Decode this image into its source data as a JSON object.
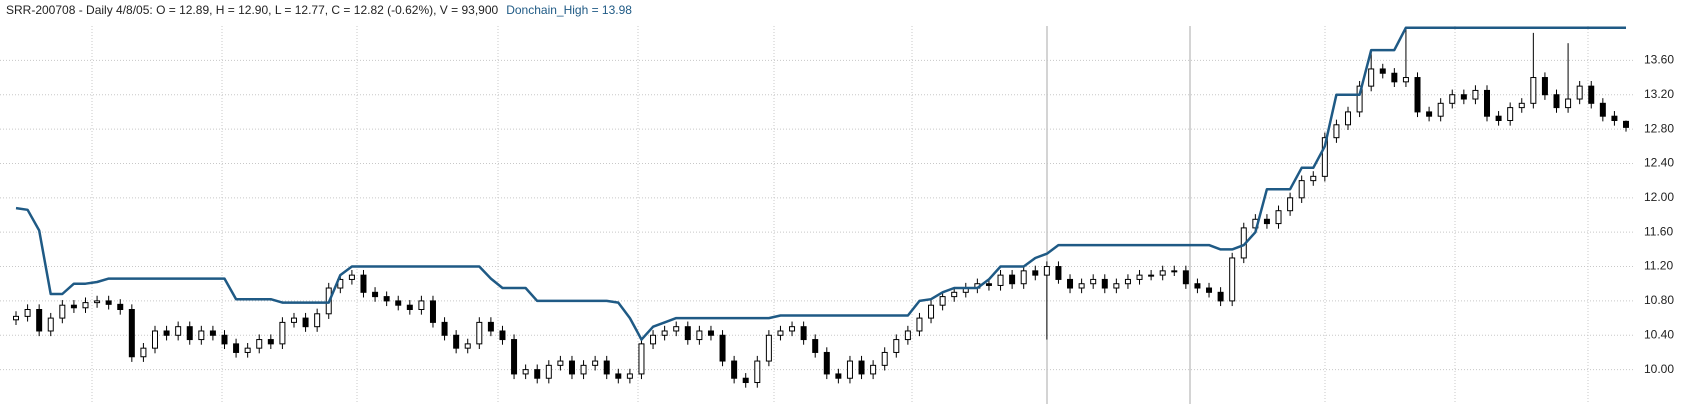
{
  "chart_data": {
    "type": "candlestick",
    "title": "SRR-200708 - Daily 4/8/05:  O = 12.89,  H = 12.90,  L = 12.77,  C = 12.82 (-0.62%), V = 93,900",
    "open": [
      10.58,
      10.62,
      10.7,
      10.45,
      10.6,
      10.75,
      10.72,
      10.78,
      10.8,
      10.76,
      10.7,
      10.15,
      10.25,
      10.45,
      10.4,
      10.5,
      10.35,
      10.45,
      10.4,
      10.3,
      10.2,
      10.25,
      10.35,
      10.3,
      10.55,
      10.6,
      10.5,
      10.65,
      10.95,
      11.05,
      11.1,
      10.9,
      10.85,
      10.8,
      10.75,
      10.7,
      10.8,
      10.55,
      10.4,
      10.25,
      10.3,
      10.55,
      10.45,
      10.35,
      9.95,
      10.0,
      9.9,
      10.05,
      10.1,
      9.95,
      10.05,
      10.1,
      9.95,
      9.9,
      9.95,
      10.3,
      10.4,
      10.45,
      10.5,
      10.35,
      10.45,
      10.4,
      10.1,
      9.9,
      9.85,
      10.1,
      10.4,
      10.45,
      10.5,
      10.35,
      10.2,
      9.95,
      9.9,
      10.1,
      9.95,
      10.05,
      10.2,
      10.35,
      10.45,
      10.6,
      10.75,
      10.85,
      10.9,
      10.95,
      11.0,
      10.98,
      11.1,
      11.0,
      11.15,
      11.1,
      11.2,
      11.05,
      10.95,
      11.0,
      11.05,
      10.95,
      11.0,
      11.05,
      11.1,
      11.1,
      11.15,
      11.15,
      11.0,
      10.95,
      10.9,
      10.8,
      11.3,
      11.65,
      11.75,
      11.7,
      11.85,
      12.0,
      12.2,
      12.25,
      12.7,
      12.85,
      13.0,
      13.3,
      13.5,
      13.45,
      13.35,
      13.4,
      13.0,
      12.95,
      13.1,
      13.2,
      13.15,
      13.25,
      12.95,
      12.9,
      13.05,
      13.1,
      13.4,
      13.2,
      13.05,
      13.15,
      13.3,
      13.1,
      12.95,
      12.89
    ],
    "high": [
      10.68,
      10.76,
      10.76,
      10.66,
      10.81,
      10.81,
      10.84,
      10.86,
      10.86,
      10.82,
      10.76,
      10.31,
      10.51,
      10.51,
      10.56,
      10.56,
      10.51,
      10.51,
      10.46,
      10.36,
      10.31,
      10.41,
      10.41,
      10.61,
      10.66,
      10.66,
      10.71,
      11.01,
      11.11,
      11.16,
      11.16,
      10.96,
      10.91,
      10.86,
      10.81,
      10.86,
      10.86,
      10.61,
      10.46,
      10.36,
      10.61,
      10.61,
      10.51,
      10.41,
      10.06,
      10.06,
      10.11,
      10.16,
      10.16,
      10.11,
      10.16,
      10.16,
      10.01,
      10.01,
      10.36,
      10.46,
      10.51,
      10.56,
      10.56,
      10.51,
      10.51,
      10.46,
      10.16,
      9.96,
      10.16,
      10.46,
      10.51,
      10.56,
      10.56,
      10.41,
      10.26,
      10.01,
      10.16,
      10.16,
      10.11,
      10.26,
      10.41,
      10.51,
      10.66,
      10.81,
      10.91,
      10.96,
      11.01,
      11.06,
      11.06,
      11.16,
      11.16,
      11.21,
      11.21,
      11.26,
      11.26,
      11.11,
      11.06,
      11.11,
      11.11,
      11.06,
      11.11,
      11.16,
      11.16,
      11.21,
      11.21,
      11.21,
      11.06,
      11.01,
      10.96,
      11.36,
      11.71,
      11.81,
      11.81,
      11.91,
      12.06,
      12.26,
      12.31,
      12.76,
      12.91,
      13.06,
      13.36,
      13.72,
      13.56,
      13.51,
      13.98,
      13.46,
      13.06,
      13.16,
      13.26,
      13.26,
      13.31,
      13.31,
      13.01,
      13.11,
      13.16,
      13.92,
      13.46,
      13.26,
      13.8,
      13.36,
      13.36,
      13.16,
      13.01,
      12.9
    ],
    "low": [
      10.52,
      10.56,
      10.39,
      10.39,
      10.54,
      10.66,
      10.66,
      10.72,
      10.7,
      10.64,
      10.09,
      10.09,
      10.19,
      10.34,
      10.34,
      10.29,
      10.29,
      10.34,
      10.24,
      10.14,
      10.14,
      10.19,
      10.24,
      10.24,
      10.49,
      10.44,
      10.44,
      10.59,
      10.89,
      10.99,
      10.84,
      10.79,
      10.74,
      10.69,
      10.64,
      10.64,
      10.49,
      10.34,
      10.19,
      10.19,
      10.24,
      10.39,
      10.29,
      9.89,
      9.89,
      9.84,
      9.84,
      9.99,
      9.89,
      9.89,
      9.99,
      9.89,
      9.84,
      9.84,
      9.89,
      10.24,
      10.34,
      10.39,
      10.29,
      10.29,
      10.34,
      10.04,
      9.84,
      9.79,
      9.79,
      10.04,
      10.34,
      10.39,
      10.29,
      10.14,
      9.89,
      9.84,
      9.84,
      9.89,
      9.89,
      9.99,
      10.14,
      10.29,
      10.39,
      10.54,
      10.69,
      10.79,
      10.84,
      10.89,
      10.92,
      10.92,
      10.94,
      10.94,
      11.04,
      10.35,
      11.0,
      10.89,
      10.89,
      10.94,
      10.89,
      10.89,
      10.94,
      10.99,
      11.04,
      11.04,
      11.09,
      10.94,
      10.89,
      10.84,
      10.74,
      10.74,
      11.24,
      11.59,
      11.64,
      11.64,
      11.79,
      11.94,
      12.14,
      12.19,
      12.64,
      12.79,
      12.94,
      13.24,
      13.39,
      13.29,
      13.29,
      12.94,
      12.89,
      12.89,
      13.04,
      13.09,
      13.09,
      12.89,
      12.84,
      12.84,
      12.99,
      13.04,
      13.14,
      12.99,
      12.99,
      13.09,
      13.04,
      12.89,
      12.84,
      12.77
    ],
    "close": [
      10.62,
      10.7,
      10.45,
      10.6,
      10.75,
      10.72,
      10.78,
      10.8,
      10.76,
      10.7,
      10.15,
      10.25,
      10.45,
      10.4,
      10.5,
      10.35,
      10.45,
      10.4,
      10.3,
      10.2,
      10.25,
      10.35,
      10.3,
      10.55,
      10.6,
      10.5,
      10.65,
      10.95,
      11.05,
      11.1,
      10.9,
      10.85,
      10.8,
      10.75,
      10.7,
      10.8,
      10.55,
      10.4,
      10.25,
      10.3,
      10.55,
      10.45,
      10.35,
      9.95,
      10.0,
      9.9,
      10.05,
      10.1,
      9.95,
      10.05,
      10.1,
      9.95,
      9.9,
      9.95,
      10.3,
      10.4,
      10.45,
      10.5,
      10.35,
      10.45,
      10.4,
      10.1,
      9.9,
      9.85,
      10.1,
      10.4,
      10.45,
      10.5,
      10.35,
      10.2,
      9.95,
      9.9,
      10.1,
      9.95,
      10.05,
      10.2,
      10.35,
      10.45,
      10.6,
      10.75,
      10.85,
      10.9,
      10.95,
      11.0,
      10.98,
      11.1,
      11.0,
      11.15,
      11.1,
      11.2,
      11.05,
      10.95,
      11.0,
      11.05,
      10.95,
      11.0,
      11.05,
      11.1,
      11.1,
      11.15,
      11.15,
      11.0,
      10.95,
      10.9,
      10.8,
      11.3,
      11.65,
      11.75,
      11.7,
      11.85,
      12.0,
      12.2,
      12.25,
      12.7,
      12.85,
      13.0,
      13.3,
      13.5,
      13.45,
      13.35,
      13.4,
      13.0,
      12.95,
      13.1,
      13.2,
      13.15,
      13.25,
      12.95,
      12.9,
      13.05,
      13.1,
      13.4,
      13.2,
      13.05,
      13.15,
      13.3,
      13.1,
      12.95,
      12.9,
      12.82
    ],
    "up_color": "#ffffff",
    "down_color": "#000000",
    "series": [
      {
        "name": "Donchain_High = 13.98",
        "color": "#1f5a85",
        "values": [
          11.88,
          11.86,
          11.62,
          10.88,
          10.88,
          11.0,
          11.0,
          11.02,
          11.06,
          11.06,
          11.06,
          11.06,
          11.06,
          11.06,
          11.06,
          11.06,
          11.06,
          11.06,
          11.06,
          10.82,
          10.82,
          10.82,
          10.82,
          10.78,
          10.78,
          10.78,
          10.78,
          10.78,
          11.1,
          11.2,
          11.2,
          11.2,
          11.2,
          11.2,
          11.2,
          11.2,
          11.2,
          11.2,
          11.2,
          11.2,
          11.2,
          11.06,
          10.95,
          10.95,
          10.95,
          10.8,
          10.8,
          10.8,
          10.8,
          10.8,
          10.8,
          10.8,
          10.78,
          10.6,
          10.35,
          10.5,
          10.55,
          10.6,
          10.6,
          10.6,
          10.6,
          10.6,
          10.6,
          10.6,
          10.6,
          10.6,
          10.63,
          10.63,
          10.63,
          10.63,
          10.63,
          10.63,
          10.63,
          10.63,
          10.63,
          10.63,
          10.63,
          10.63,
          10.8,
          10.82,
          10.9,
          10.95,
          10.95,
          10.95,
          11.05,
          11.2,
          11.2,
          11.2,
          11.3,
          11.35,
          11.45,
          11.45,
          11.45,
          11.45,
          11.45,
          11.45,
          11.45,
          11.45,
          11.45,
          11.45,
          11.45,
          11.45,
          11.45,
          11.45,
          11.4,
          11.4,
          11.45,
          11.6,
          12.1,
          12.1,
          12.1,
          12.35,
          12.35,
          12.6,
          13.2,
          13.2,
          13.2,
          13.72,
          13.72,
          13.72,
          13.98,
          13.98,
          13.98,
          13.98,
          13.98,
          13.98,
          13.98,
          13.98,
          13.98,
          13.98,
          13.98,
          13.98,
          13.98,
          13.98,
          13.98,
          13.98,
          13.98,
          13.98,
          13.98,
          13.98
        ]
      }
    ],
    "ylim": [
      9.6,
      14.0
    ],
    "yticks": [
      {
        "value": 10.0,
        "label": "10.00"
      },
      {
        "value": 10.4,
        "label": "10.40"
      },
      {
        "value": 10.8,
        "label": "10.80"
      },
      {
        "value": 11.2,
        "label": "11.20"
      },
      {
        "value": 11.6,
        "label": "11.60"
      },
      {
        "value": 12.0,
        "label": "12.00"
      },
      {
        "value": 12.4,
        "label": "12.40"
      },
      {
        "value": 12.8,
        "label": "12.80"
      },
      {
        "value": 13.2,
        "label": "13.20"
      },
      {
        "value": 13.6,
        "label": "13.60"
      }
    ],
    "grid": true
  }
}
